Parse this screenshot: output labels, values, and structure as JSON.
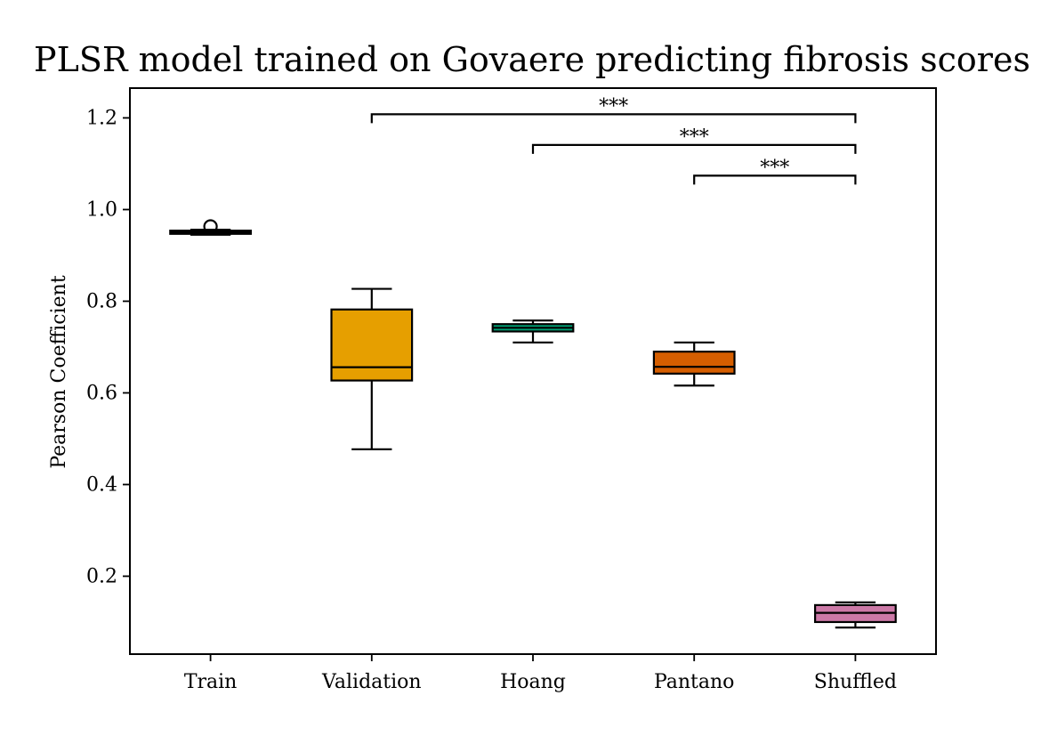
{
  "chart_data": {
    "type": "box",
    "title": "PLSR model trained on Govaere predicting fibrosis scores",
    "xlabel": "",
    "ylabel": "Pearson Coefficient",
    "ylim": [
      0.03,
      1.265
    ],
    "yticks": [
      "0.2",
      "0.4",
      "0.6",
      "0.8",
      "1.0",
      "1.2"
    ],
    "grid": false,
    "categories": [
      "Train",
      "Validation",
      "Hoang",
      "Pantano",
      "Shuffled"
    ],
    "boxes": [
      {
        "category": "Train",
        "color": "#000000",
        "whisker_low": 0.945,
        "q1": 0.947,
        "median": 0.952,
        "q3": 0.954,
        "whisker_high": 0.956,
        "outliers": [
          0.963
        ]
      },
      {
        "category": "Validation",
        "color": "#E69F00",
        "whisker_low": 0.477,
        "q1": 0.627,
        "median": 0.656,
        "q3": 0.782,
        "whisker_high": 0.827,
        "outliers": []
      },
      {
        "category": "Hoang",
        "color": "#009E73",
        "whisker_low": 0.71,
        "q1": 0.734,
        "median": 0.742,
        "q3": 0.75,
        "whisker_high": 0.758,
        "outliers": []
      },
      {
        "category": "Pantano",
        "color": "#D55E00",
        "whisker_low": 0.616,
        "q1": 0.642,
        "median": 0.657,
        "q3": 0.69,
        "whisker_high": 0.71,
        "outliers": []
      },
      {
        "category": "Shuffled",
        "color": "#CC79A7",
        "whisker_low": 0.088,
        "q1": 0.1,
        "median": 0.12,
        "q3": 0.137,
        "whisker_high": 0.143,
        "outliers": []
      }
    ],
    "significance": [
      {
        "from": "Validation",
        "to": "Shuffled",
        "label": "***",
        "y": 1.208
      },
      {
        "from": "Hoang",
        "to": "Shuffled",
        "label": "***",
        "y": 1.141
      },
      {
        "from": "Pantano",
        "to": "Shuffled",
        "label": "***",
        "y": 1.074
      }
    ]
  }
}
